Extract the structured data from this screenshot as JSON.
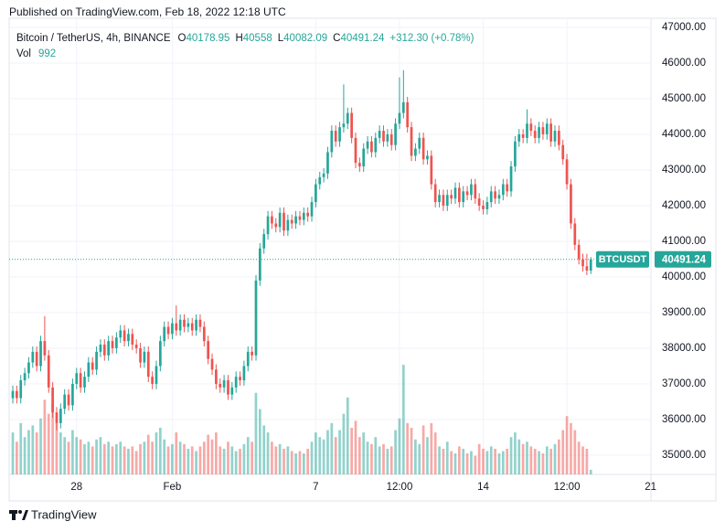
{
  "published": "Published on TradingView.com, Feb 18, 2022 12:18 UTC",
  "footer": "TradingView",
  "chart_data": {
    "type": "candlestick",
    "title": "Bitcoin / TetherUS, 4h, BINANCE",
    "ohlc_labels": [
      "O",
      "H",
      "L",
      "C"
    ],
    "change": "+312.30 (+0.78%)",
    "volume_label": "Vol",
    "symbol": "BTCUSDT",
    "up_color": "#26a69a",
    "down_color": "#ef5350",
    "xlim": [
      -0.92,
      160.08
    ],
    "xticks": [
      {
        "value": 16,
        "label": "28"
      },
      {
        "value": 40,
        "label": "Feb"
      },
      {
        "value": 76,
        "label": "7"
      },
      {
        "value": 97,
        "label": "12:00"
      },
      {
        "value": 118,
        "label": "14"
      },
      {
        "value": 139,
        "label": "12:00"
      },
      {
        "value": 160,
        "label": "21"
      }
    ],
    "ylim": [
      34460,
      47256
    ],
    "yticks": [
      {
        "value": 35000,
        "label": "35000.00"
      },
      {
        "value": 36000,
        "label": "36000.00"
      },
      {
        "value": 37000,
        "label": "37000.00"
      },
      {
        "value": 38000,
        "label": "38000.00"
      },
      {
        "value": 39000,
        "label": "39000.00"
      },
      {
        "value": 40000,
        "label": "40000.00"
      },
      {
        "value": 41000,
        "label": "41000.00"
      },
      {
        "value": 42000,
        "label": "42000.00"
      },
      {
        "value": 43000,
        "label": "43000.00"
      },
      {
        "value": 44000,
        "label": "44000.00"
      },
      {
        "value": 45000,
        "label": "45000.00"
      },
      {
        "value": 46000,
        "label": "46000.00"
      },
      {
        "value": 47000,
        "label": "47000.00"
      }
    ],
    "volume_ylim": [
      0,
      24500
    ],
    "grid": true,
    "ohlc": [
      [
        36600,
        36950,
        36450,
        36800
      ],
      [
        36800,
        36950,
        36450,
        36600
      ],
      [
        36600,
        37250,
        36450,
        37100
      ],
      [
        37100,
        37450,
        36950,
        37300
      ],
      [
        37300,
        37750,
        37150,
        37600
      ],
      [
        37600,
        38050,
        37450,
        37900
      ],
      [
        37900,
        38050,
        37350,
        37500
      ],
      [
        37500,
        38350,
        37350,
        38200
      ],
      [
        38200,
        38900,
        37650,
        37800
      ],
      [
        37800,
        37950,
        36750,
        36900
      ],
      [
        36900,
        37050,
        36050,
        36200
      ],
      [
        36200,
        36350,
        35700,
        35900
      ],
      [
        35900,
        36450,
        35750,
        36300
      ],
      [
        36300,
        36850,
        36150,
        36700
      ],
      [
        36700,
        36850,
        36250,
        36400
      ],
      [
        36400,
        37150,
        36250,
        37000
      ],
      [
        37000,
        37450,
        36850,
        37300
      ],
      [
        37300,
        37450,
        36750,
        36900
      ],
      [
        36900,
        37350,
        36750,
        37200
      ],
      [
        37200,
        37750,
        37050,
        37600
      ],
      [
        37600,
        37750,
        37250,
        37400
      ],
      [
        37400,
        38050,
        37250,
        37900
      ],
      [
        37900,
        38250,
        37750,
        38100
      ],
      [
        38100,
        38250,
        37650,
        37800
      ],
      [
        37800,
        38350,
        37650,
        38200
      ],
      [
        38200,
        38350,
        37850,
        38000
      ],
      [
        38000,
        38450,
        37850,
        38300
      ],
      [
        38300,
        38650,
        38150,
        38500
      ],
      [
        38500,
        38650,
        38050,
        38200
      ],
      [
        38200,
        38550,
        38050,
        38400
      ],
      [
        38400,
        38550,
        37950,
        38100
      ],
      [
        38100,
        38250,
        37850,
        38000
      ],
      [
        38000,
        38150,
        37450,
        37600
      ],
      [
        37600,
        38050,
        37450,
        37900
      ],
      [
        37900,
        38050,
        37050,
        37200
      ],
      [
        37200,
        37350,
        36850,
        37000
      ],
      [
        37000,
        37650,
        36850,
        37500
      ],
      [
        37500,
        38350,
        37350,
        38200
      ],
      [
        38200,
        38750,
        38050,
        38600
      ],
      [
        38600,
        38750,
        38250,
        38400
      ],
      [
        38400,
        38850,
        38250,
        38700
      ],
      [
        38700,
        39200,
        38350,
        38500
      ],
      [
        38500,
        38950,
        38350,
        38800
      ],
      [
        38800,
        38950,
        38450,
        38600
      ],
      [
        38600,
        38850,
        38450,
        38700
      ],
      [
        38700,
        38850,
        38350,
        38500
      ],
      [
        38500,
        38950,
        38350,
        38800
      ],
      [
        38800,
        38950,
        38450,
        38600
      ],
      [
        38600,
        38750,
        38050,
        38200
      ],
      [
        38200,
        38350,
        37550,
        37700
      ],
      [
        37700,
        37850,
        37250,
        37400
      ],
      [
        37400,
        37550,
        36850,
        37000
      ],
      [
        37000,
        37150,
        36750,
        36900
      ],
      [
        36900,
        37250,
        36750,
        37100
      ],
      [
        37100,
        37250,
        36550,
        36700
      ],
      [
        36700,
        37050,
        36550,
        36900
      ],
      [
        36900,
        37350,
        36750,
        37200
      ],
      [
        37200,
        37350,
        36950,
        37100
      ],
      [
        37100,
        37650,
        36950,
        37500
      ],
      [
        37500,
        38050,
        37350,
        37900
      ],
      [
        37900,
        38050,
        37650,
        37800
      ],
      [
        37800,
        40050,
        37650,
        39900
      ],
      [
        39900,
        40950,
        39750,
        40800
      ],
      [
        40800,
        41350,
        40650,
        41200
      ],
      [
        41200,
        41850,
        41050,
        41700
      ],
      [
        41700,
        41850,
        41350,
        41500
      ],
      [
        41500,
        41650,
        41250,
        41400
      ],
      [
        41400,
        41950,
        41250,
        41800
      ],
      [
        41800,
        41950,
        41150,
        41300
      ],
      [
        41300,
        41750,
        41150,
        41600
      ],
      [
        41600,
        41750,
        41350,
        41500
      ],
      [
        41500,
        41850,
        41350,
        41700
      ],
      [
        41700,
        41850,
        41450,
        41600
      ],
      [
        41600,
        41950,
        41450,
        41800
      ],
      [
        41800,
        41950,
        41550,
        41700
      ],
      [
        41700,
        42250,
        41550,
        42100
      ],
      [
        42100,
        42750,
        41950,
        42600
      ],
      [
        42600,
        42950,
        42450,
        42800
      ],
      [
        42800,
        43050,
        42650,
        42900
      ],
      [
        42900,
        43650,
        42750,
        43500
      ],
      [
        43500,
        44250,
        43350,
        44100
      ],
      [
        44100,
        44250,
        43650,
        43800
      ],
      [
        43800,
        44350,
        43650,
        44200
      ],
      [
        44200,
        45400,
        44050,
        44300
      ],
      [
        44300,
        44750,
        44150,
        44600
      ],
      [
        44600,
        44750,
        43750,
        43900
      ],
      [
        43900,
        44050,
        43050,
        43200
      ],
      [
        43200,
        43350,
        42950,
        43100
      ],
      [
        43100,
        43750,
        42950,
        43600
      ],
      [
        43600,
        43950,
        43450,
        43800
      ],
      [
        43800,
        43950,
        43350,
        43500
      ],
      [
        43500,
        44050,
        43350,
        43900
      ],
      [
        43900,
        44250,
        43750,
        44100
      ],
      [
        44100,
        44250,
        43650,
        43800
      ],
      [
        43800,
        44150,
        43650,
        44000
      ],
      [
        44000,
        44150,
        43550,
        43700
      ],
      [
        43700,
        44450,
        43550,
        44300
      ],
      [
        44300,
        45600,
        44150,
        44600
      ],
      [
        44600,
        45800,
        44450,
        44900
      ],
      [
        44900,
        45050,
        44050,
        44200
      ],
      [
        44200,
        44350,
        43250,
        43400
      ],
      [
        43400,
        43750,
        43250,
        43600
      ],
      [
        43600,
        44050,
        43450,
        43900
      ],
      [
        43900,
        44050,
        43150,
        43300
      ],
      [
        43300,
        43550,
        43150,
        43400
      ],
      [
        43400,
        43550,
        42450,
        42600
      ],
      [
        42600,
        42750,
        41950,
        42100
      ],
      [
        42100,
        42450,
        41950,
        42300
      ],
      [
        42300,
        42450,
        41850,
        42000
      ],
      [
        42000,
        42450,
        41850,
        42300
      ],
      [
        42300,
        42450,
        42050,
        42200
      ],
      [
        42200,
        42650,
        42050,
        42500
      ],
      [
        42500,
        42650,
        41950,
        42100
      ],
      [
        42100,
        42550,
        41950,
        42400
      ],
      [
        42400,
        42550,
        42150,
        42300
      ],
      [
        42300,
        42750,
        42150,
        42600
      ],
      [
        42600,
        42750,
        42050,
        42200
      ],
      [
        42200,
        42350,
        41850,
        42000
      ],
      [
        42000,
        42150,
        41750,
        41900
      ],
      [
        41900,
        42250,
        41750,
        42100
      ],
      [
        42100,
        42550,
        41950,
        42400
      ],
      [
        42400,
        42550,
        42050,
        42200
      ],
      [
        42200,
        42450,
        42050,
        42300
      ],
      [
        42300,
        42750,
        42150,
        42600
      ],
      [
        42600,
        42750,
        42250,
        42400
      ],
      [
        42400,
        43250,
        42250,
        43100
      ],
      [
        43100,
        43950,
        42950,
        43800
      ],
      [
        43800,
        44150,
        43650,
        44000
      ],
      [
        44000,
        44150,
        43750,
        43900
      ],
      [
        43900,
        44700,
        43750,
        44300
      ],
      [
        44300,
        44450,
        43950,
        44100
      ],
      [
        44100,
        44250,
        43750,
        43900
      ],
      [
        43900,
        44350,
        43750,
        44200
      ],
      [
        44200,
        44350,
        43850,
        44000
      ],
      [
        44000,
        44450,
        43850,
        44300
      ],
      [
        44300,
        44450,
        43650,
        43800
      ],
      [
        43800,
        44250,
        43650,
        44100
      ],
      [
        44100,
        44250,
        43550,
        43700
      ],
      [
        43700,
        43850,
        43150,
        43300
      ],
      [
        43300,
        43450,
        42450,
        42600
      ],
      [
        42600,
        42750,
        41350,
        41500
      ],
      [
        41500,
        41650,
        40750,
        40900
      ],
      [
        40900,
        41050,
        40350,
        40500
      ],
      [
        40500,
        40650,
        40150,
        40300
      ],
      [
        40300,
        40650,
        40050,
        40178.95
      ],
      [
        40178.95,
        40558,
        40082.09,
        40491.24
      ]
    ],
    "volume": [
      9000,
      7000,
      11000,
      8000,
      9500,
      10500,
      9000,
      12000,
      16000,
      13000,
      15000,
      11000,
      9000,
      8000,
      7000,
      9500,
      8000,
      7500,
      6500,
      7000,
      6000,
      7500,
      8000,
      6500,
      7000,
      6000,
      6500,
      7000,
      6000,
      5500,
      6000,
      5000,
      6500,
      7000,
      8500,
      7000,
      9000,
      10000,
      7500,
      6000,
      6500,
      9000,
      7000,
      6500,
      5500,
      6000,
      5000,
      6000,
      7000,
      8500,
      7500,
      9000,
      6000,
      5500,
      7000,
      6000,
      5000,
      5500,
      6500,
      8000,
      7000,
      17500,
      14000,
      10500,
      9000,
      7000,
      6000,
      6500,
      5500,
      6000,
      5000,
      4500,
      5000,
      4500,
      5500,
      7000,
      9000,
      8000,
      7500,
      9500,
      11000,
      8000,
      9500,
      13000,
      16500,
      10000,
      11500,
      8000,
      9000,
      7000,
      6500,
      8000,
      6000,
      6500,
      5500,
      6000,
      9500,
      12000,
      23500,
      11000,
      10000,
      7500,
      6500,
      10500,
      8000,
      11000,
      9000,
      6000,
      5500,
      7000,
      5000,
      4500,
      6000,
      5500,
      4500,
      5000,
      4000,
      6500,
      5500,
      5000,
      6000,
      5500,
      4500,
      5000,
      5500,
      8000,
      9000,
      7500,
      6500,
      7000,
      6000,
      5500,
      5000,
      4500,
      6000,
      5500,
      6500,
      7500,
      9500,
      12500,
      11000,
      9500,
      7000,
      6000,
      5500,
      992
    ]
  }
}
